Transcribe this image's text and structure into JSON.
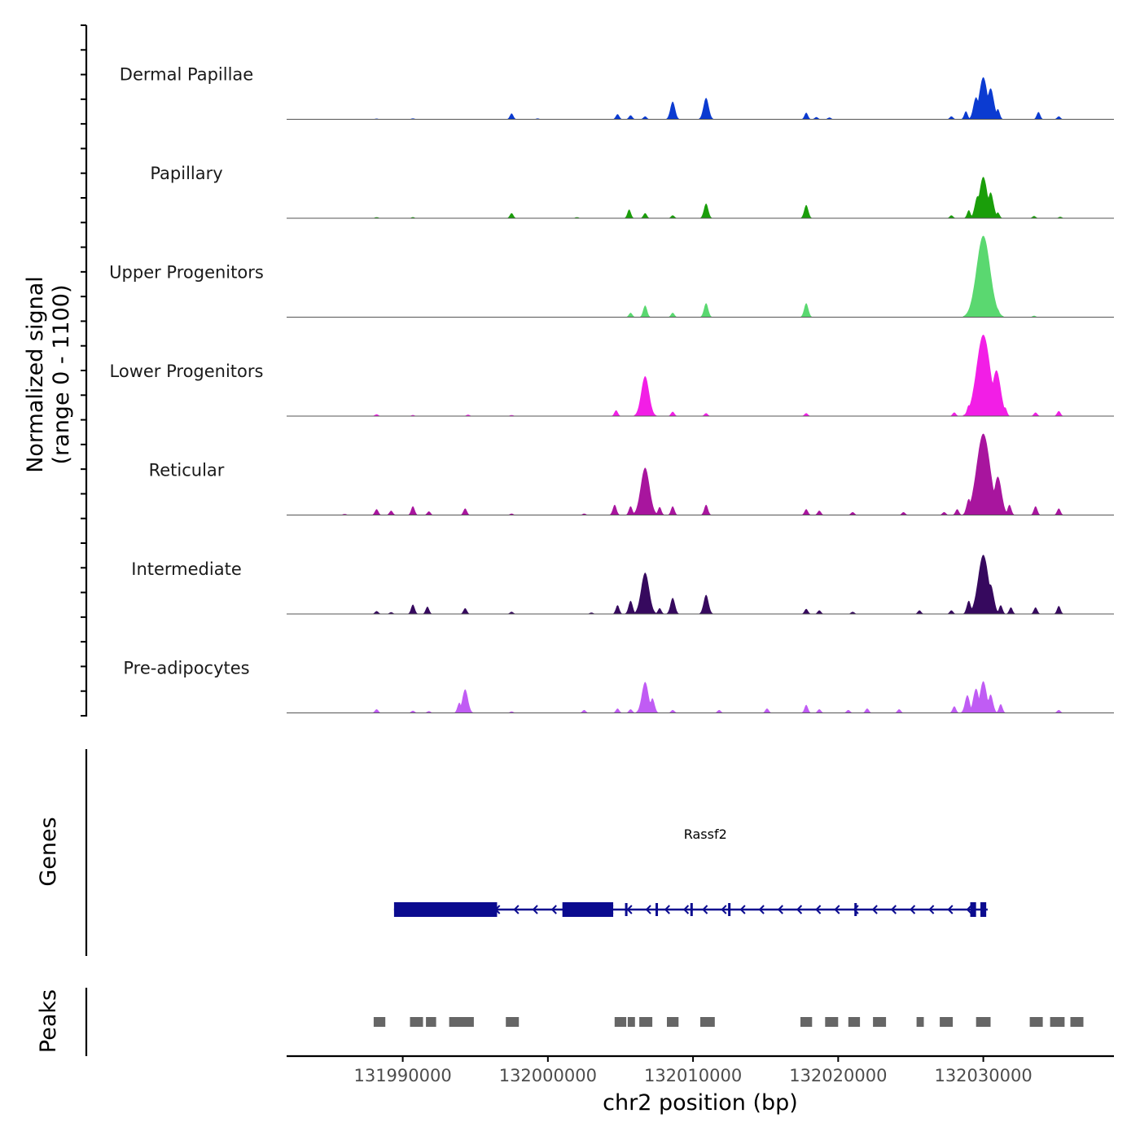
{
  "chart_data": {
    "type": "area",
    "chromosome": "chr2",
    "xlim": [
      131982000,
      132039000
    ],
    "xlabel": "chr2 position (bp)",
    "x_ticks": [
      131990000,
      132000000,
      132010000,
      132020000,
      132030000
    ],
    "x_tick_labels": [
      "131990000",
      "132000000",
      "132010000",
      "132020000",
      "132030000"
    ],
    "ylabel_line1": "Normalized signal",
    "ylabel_line2": "(range 0 - 1100)",
    "ylim": [
      0,
      1100
    ],
    "tracks": [
      {
        "name": "Dermal Papillae",
        "color": "#0b3bd1",
        "peaks": [
          [
            131988200,
            10
          ],
          [
            131990700,
            12
          ],
          [
            131997500,
            80
          ],
          [
            131999300,
            12
          ],
          [
            132004800,
            70
          ],
          [
            132005700,
            55
          ],
          [
            132006700,
            40
          ],
          [
            132008600,
            240
          ],
          [
            132010900,
            290
          ],
          [
            132017800,
            90
          ],
          [
            132018500,
            30
          ],
          [
            132019400,
            25
          ],
          [
            132027800,
            40
          ],
          [
            132028800,
            110
          ],
          [
            132029500,
            300
          ],
          [
            132030000,
            570
          ],
          [
            132030500,
            420
          ],
          [
            132031000,
            140
          ],
          [
            132033800,
            100
          ],
          [
            132035200,
            40
          ]
        ]
      },
      {
        "name": "Papillary",
        "color": "#1a9e0a",
        "peaks": [
          [
            131988200,
            15
          ],
          [
            131990700,
            15
          ],
          [
            131997500,
            70
          ],
          [
            132002000,
            15
          ],
          [
            132005600,
            120
          ],
          [
            132006700,
            70
          ],
          [
            132008600,
            40
          ],
          [
            132010900,
            200
          ],
          [
            132017800,
            180
          ],
          [
            132027800,
            40
          ],
          [
            132029000,
            110
          ],
          [
            132029600,
            300
          ],
          [
            132030000,
            560
          ],
          [
            132030500,
            350
          ],
          [
            132031000,
            80
          ],
          [
            132033500,
            30
          ],
          [
            132035300,
            20
          ]
        ]
      },
      {
        "name": "Upper Progenitors",
        "color": "#5ad870",
        "peaks": [
          [
            132005700,
            60
          ],
          [
            132006700,
            160
          ],
          [
            132008600,
            60
          ],
          [
            132010900,
            190
          ],
          [
            132017800,
            190
          ],
          [
            132029200,
            70
          ],
          [
            132029600,
            260
          ],
          [
            132030000,
            1100
          ],
          [
            132030500,
            300
          ],
          [
            132031000,
            110
          ],
          [
            132033500,
            20
          ]
        ]
      },
      {
        "name": "Lower Progenitors",
        "color": "#f21ee6",
        "peaks": [
          [
            131988200,
            25
          ],
          [
            131990700,
            15
          ],
          [
            131994500,
            20
          ],
          [
            131997500,
            15
          ],
          [
            132004700,
            80
          ],
          [
            132006700,
            540
          ],
          [
            132008600,
            60
          ],
          [
            132010900,
            40
          ],
          [
            132017800,
            40
          ],
          [
            132028000,
            50
          ],
          [
            132029000,
            150
          ],
          [
            132030000,
            1100
          ],
          [
            132030500,
            300
          ],
          [
            132030900,
            620
          ],
          [
            132031500,
            120
          ],
          [
            132033600,
            50
          ],
          [
            132035200,
            70
          ]
        ]
      },
      {
        "name": "Reticular",
        "color": "#a8159e",
        "peaks": [
          [
            131986000,
            15
          ],
          [
            131988200,
            80
          ],
          [
            131989200,
            60
          ],
          [
            131990700,
            120
          ],
          [
            131991800,
            50
          ],
          [
            131994300,
            90
          ],
          [
            131997500,
            20
          ],
          [
            132002500,
            20
          ],
          [
            132004600,
            140
          ],
          [
            132005700,
            120
          ],
          [
            132006700,
            640
          ],
          [
            132007700,
            110
          ],
          [
            132008600,
            120
          ],
          [
            132010900,
            140
          ],
          [
            132017800,
            80
          ],
          [
            132018700,
            60
          ],
          [
            132021000,
            40
          ],
          [
            132024500,
            40
          ],
          [
            132027300,
            40
          ],
          [
            132028200,
            80
          ],
          [
            132029000,
            220
          ],
          [
            132030000,
            1100
          ],
          [
            132030500,
            420
          ],
          [
            132031000,
            520
          ],
          [
            132031800,
            140
          ],
          [
            132033600,
            120
          ],
          [
            132035200,
            90
          ]
        ]
      },
      {
        "name": "Intermediate",
        "color": "#36095e",
        "peaks": [
          [
            131988200,
            40
          ],
          [
            131989200,
            25
          ],
          [
            131990700,
            130
          ],
          [
            131991700,
            100
          ],
          [
            131994300,
            80
          ],
          [
            131997500,
            30
          ],
          [
            132003000,
            20
          ],
          [
            132004800,
            120
          ],
          [
            132005700,
            180
          ],
          [
            132006700,
            560
          ],
          [
            132007700,
            80
          ],
          [
            132008600,
            220
          ],
          [
            132010900,
            260
          ],
          [
            132017800,
            70
          ],
          [
            132018700,
            50
          ],
          [
            132021000,
            30
          ],
          [
            132025600,
            50
          ],
          [
            132027800,
            50
          ],
          [
            132029000,
            180
          ],
          [
            132030000,
            800
          ],
          [
            132030500,
            400
          ],
          [
            132031200,
            120
          ],
          [
            132031900,
            90
          ],
          [
            132033600,
            90
          ],
          [
            132035200,
            110
          ]
        ]
      },
      {
        "name": "Pre-adipocytes",
        "color": "#c05cf4",
        "peaks": [
          [
            131988200,
            50
          ],
          [
            131990700,
            30
          ],
          [
            131991800,
            25
          ],
          [
            131993900,
            140
          ],
          [
            131994300,
            320
          ],
          [
            131997500,
            20
          ],
          [
            132002500,
            40
          ],
          [
            132004800,
            60
          ],
          [
            132005700,
            50
          ],
          [
            132006700,
            420
          ],
          [
            132007200,
            200
          ],
          [
            132008600,
            40
          ],
          [
            132011800,
            40
          ],
          [
            132015100,
            60
          ],
          [
            132017800,
            110
          ],
          [
            132018700,
            50
          ],
          [
            132020700,
            40
          ],
          [
            132022000,
            60
          ],
          [
            132024200,
            50
          ],
          [
            132028000,
            90
          ],
          [
            132028900,
            240
          ],
          [
            132029500,
            330
          ],
          [
            132030000,
            430
          ],
          [
            132030500,
            250
          ],
          [
            132031200,
            120
          ],
          [
            132035200,
            40
          ]
        ]
      }
    ],
    "genes": [
      {
        "name": "Rassf2",
        "strand": "-",
        "color": "#0b0b8f",
        "start": 131989400,
        "end": 132030300,
        "exons": [
          [
            131989400,
            131996500
          ],
          [
            132001000,
            132004500
          ],
          [
            132029100,
            132029500
          ],
          [
            132029800,
            132030200
          ]
        ],
        "minor_exons": [
          132005400,
          132007500,
          132009900,
          132012500,
          132021200
        ]
      }
    ],
    "peaks_track_label": "Peaks",
    "genes_track_label": "Genes",
    "peak_color": "#666666",
    "peak_regions": [
      [
        131988000,
        131988800
      ],
      [
        131990500,
        131991400
      ],
      [
        131991600,
        131992300
      ],
      [
        131993200,
        131994900
      ],
      [
        131997100,
        131998000
      ],
      [
        132004600,
        132005400
      ],
      [
        132005500,
        132006000
      ],
      [
        132006300,
        132007200
      ],
      [
        132008200,
        132009000
      ],
      [
        132010500,
        132011500
      ],
      [
        132017400,
        132018200
      ],
      [
        132019100,
        132020000
      ],
      [
        132020700,
        132021500
      ],
      [
        132022400,
        132023300
      ],
      [
        132025400,
        132025900
      ],
      [
        132027000,
        132027900
      ],
      [
        132029500,
        132030500
      ],
      [
        132033200,
        132034100
      ],
      [
        132034600,
        132035600
      ],
      [
        132036000,
        132036900
      ]
    ]
  }
}
